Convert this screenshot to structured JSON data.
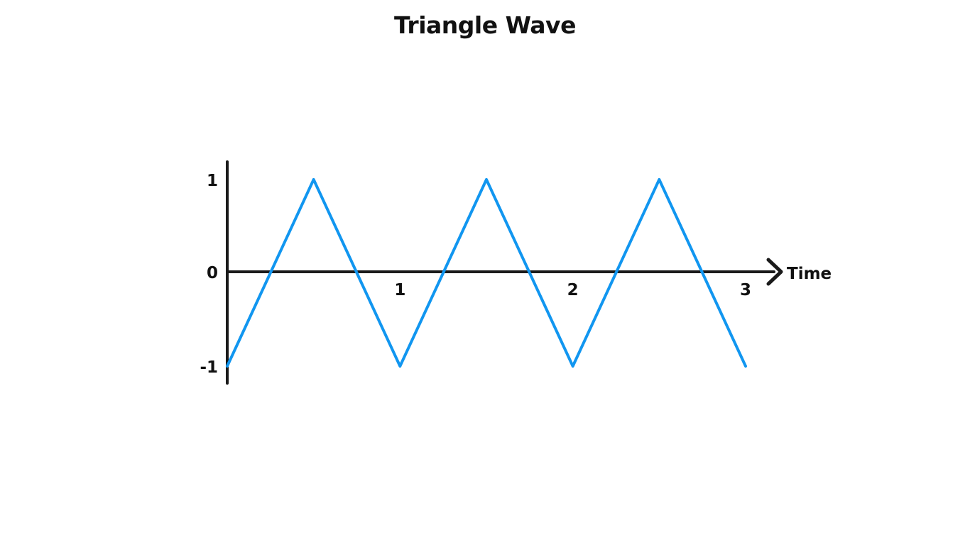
{
  "chart_data": {
    "type": "line",
    "title": "Triangle Wave",
    "xlabel": "Time",
    "ylabel": "",
    "xlim": [
      0,
      3
    ],
    "ylim": [
      -1,
      1
    ],
    "x_ticks": [
      1,
      2,
      3
    ],
    "y_ticks": [
      1,
      0,
      -1
    ],
    "grid": false,
    "series": [
      {
        "color": "#1196f0",
        "x": [
          0,
          0.5,
          1,
          1.5,
          2,
          2.5,
          3
        ],
        "y": [
          -1,
          1,
          -1,
          1,
          -1,
          1,
          -1
        ]
      }
    ]
  },
  "colors": {
    "axis": "#1a1a1a",
    "line": "#1196f0"
  }
}
